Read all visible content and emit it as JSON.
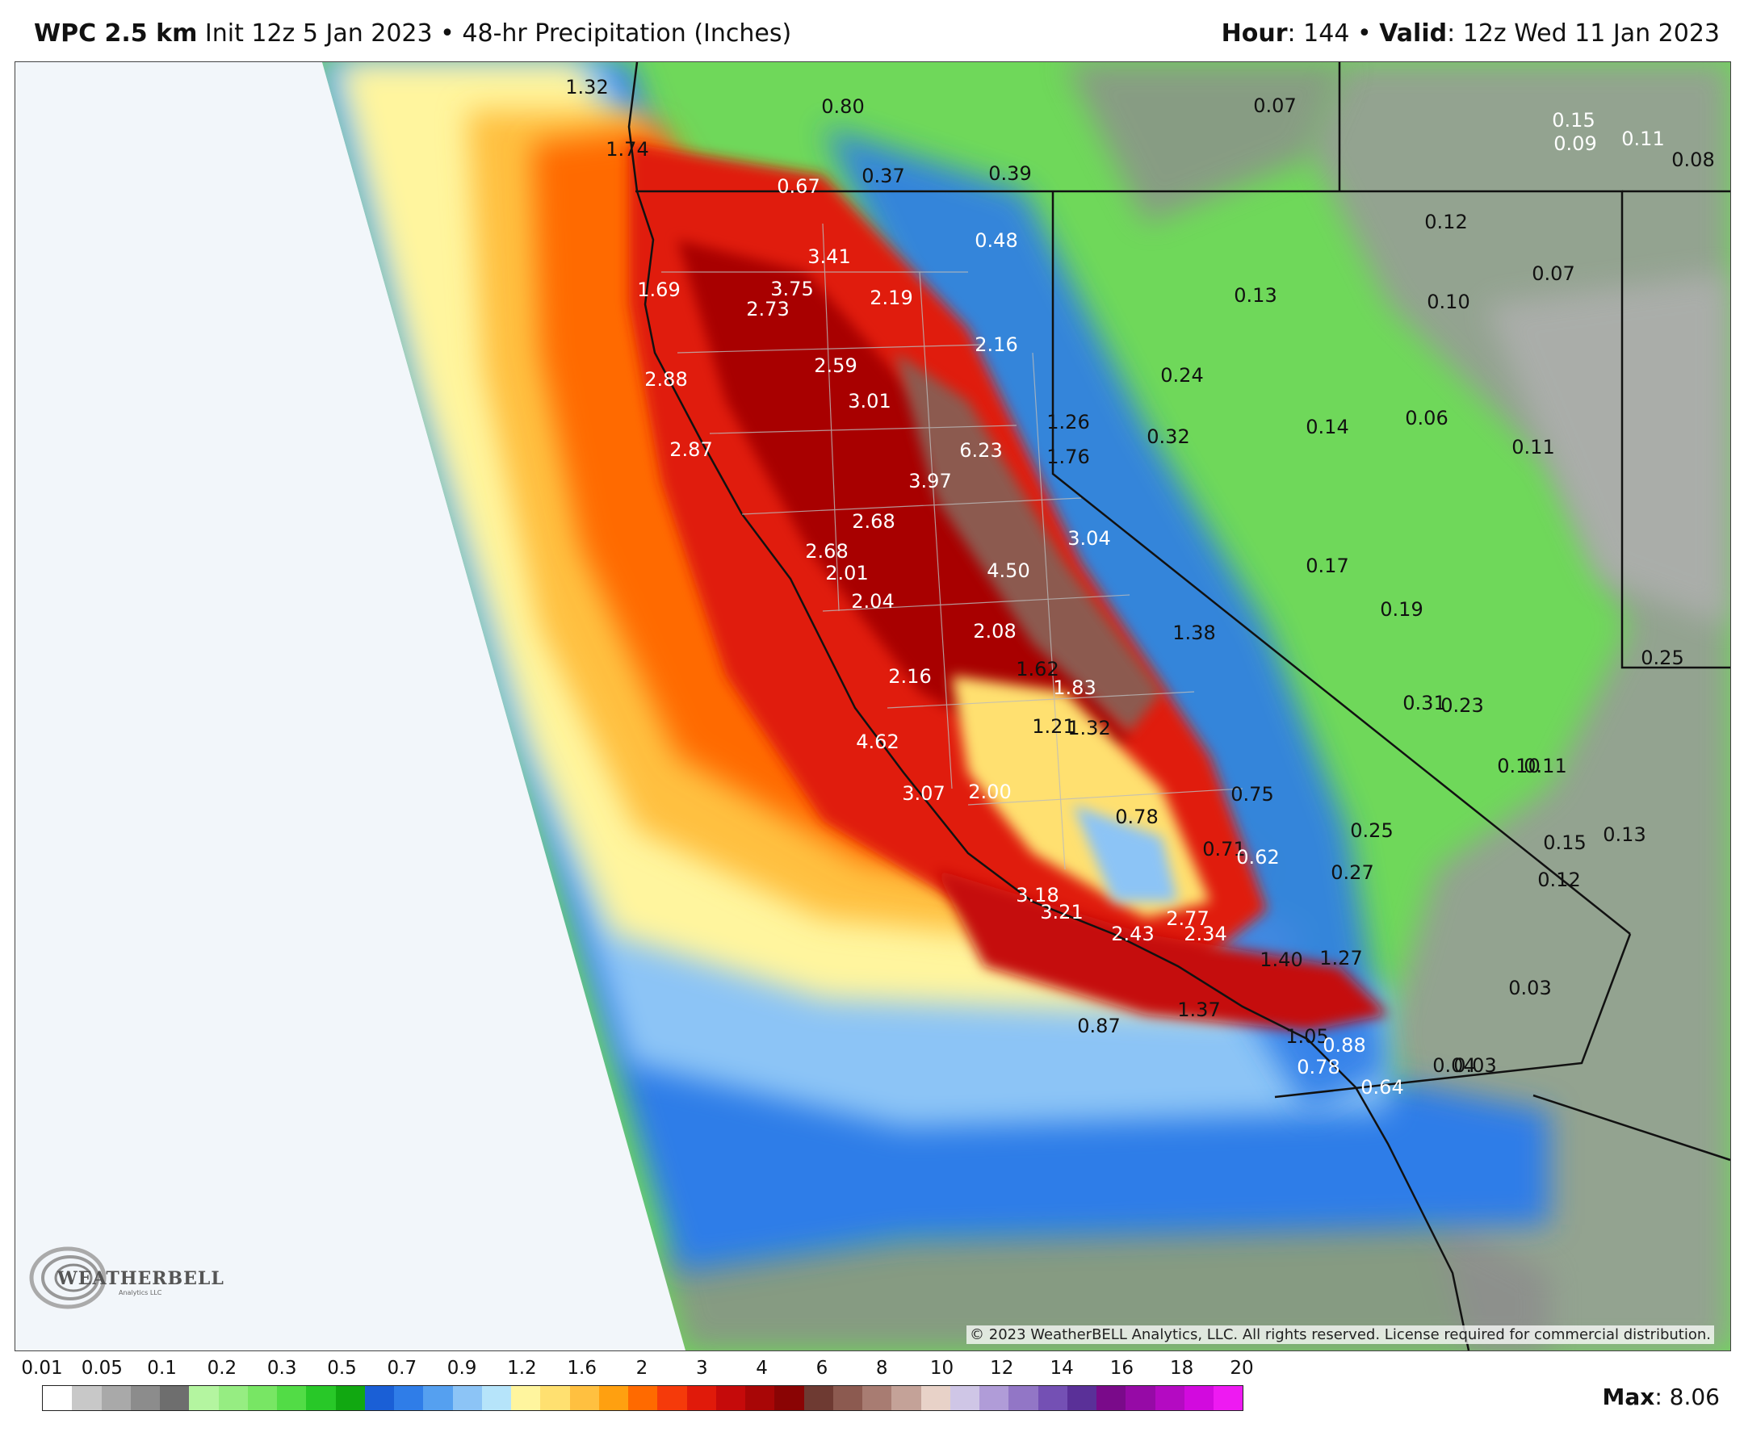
{
  "header": {
    "model": "WPC 2.5 km",
    "init": "Init 12z 5 Jan 2023",
    "sep": "•",
    "product": "48-hr Precipitation (Inches)",
    "hour_label": "Hour",
    "hour_value": ": 144",
    "valid_label": "Valid",
    "valid_value": ": 12z Wed 11 Jan 2023"
  },
  "legend": {
    "tick_labels": [
      "0.01",
      "0.05",
      "0.1",
      "0.2",
      "0.3",
      "0.5",
      "0.7",
      "0.9",
      "1.2",
      "1.6",
      "2",
      "3",
      "4",
      "6",
      "8",
      "10",
      "12",
      "14",
      "16",
      "18",
      "20"
    ],
    "colors": [
      "#ffffff",
      "#c8c8c8",
      "#a9a9a9",
      "#8c8c8c",
      "#6e6e6e",
      "#b4f5a0",
      "#96ed82",
      "#78e664",
      "#52dc46",
      "#28c828",
      "#11a811",
      "#1a5fd6",
      "#2f7de8",
      "#55a0f0",
      "#8cc4f6",
      "#b6e4fa",
      "#fff59e",
      "#ffe070",
      "#ffc040",
      "#ffa010",
      "#ff6a00",
      "#f53a0a",
      "#e01a0a",
      "#c50a0a",
      "#a80606",
      "#8a0404",
      "#6e3a32",
      "#8c5a50",
      "#a87c72",
      "#c4a298",
      "#e8d2c8",
      "#cfc6e6",
      "#b09cd8",
      "#9276c6",
      "#7450b4",
      "#5a3098",
      "#7a0a8a",
      "#960aa6",
      "#b40ac2",
      "#d20ade",
      "#ee1af2"
    ],
    "max_label": "Max",
    "max_value": ": 8.06"
  },
  "copyright": "© 2023 WeatherBELL Analytics, LLC. All rights reserved. License required for commercial distribution.",
  "logo": {
    "text": "WEATHERBELL",
    "sub": "Analytics LLC"
  },
  "values": [
    {
      "v": "1.32",
      "c": "k"
    },
    {
      "v": "1.74",
      "c": "k"
    },
    {
      "v": "0.80",
      "c": "k"
    },
    {
      "v": "0.67",
      "c": "w"
    },
    {
      "v": "0.37",
      "c": "k"
    },
    {
      "v": "0.39",
      "c": "k"
    },
    {
      "v": "0.07",
      "c": "k"
    },
    {
      "v": "0.15",
      "c": "w"
    },
    {
      "v": "0.09",
      "c": "w"
    },
    {
      "v": "0.11",
      "c": "w"
    },
    {
      "v": "0.08",
      "c": "k"
    },
    {
      "v": "0.48",
      "c": "w"
    },
    {
      "v": "3.41",
      "c": "w"
    },
    {
      "v": "3.75",
      "c": "w"
    },
    {
      "v": "2.73",
      "c": "w"
    },
    {
      "v": "2.19",
      "c": "w"
    },
    {
      "v": "1.69",
      "c": "w"
    },
    {
      "v": "2.59",
      "c": "w"
    },
    {
      "v": "2.16",
      "c": "w"
    },
    {
      "v": "0.12",
      "c": "k"
    },
    {
      "v": "0.07",
      "c": "k"
    },
    {
      "v": "0.13",
      "c": "k"
    },
    {
      "v": "0.10",
      "c": "k"
    },
    {
      "v": "2.88",
      "c": "w"
    },
    {
      "v": "3.01",
      "c": "w"
    },
    {
      "v": "0.24",
      "c": "k"
    },
    {
      "v": "1.26",
      "c": "k"
    },
    {
      "v": "0.32",
      "c": "k"
    },
    {
      "v": "0.14",
      "c": "k"
    },
    {
      "v": "0.06",
      "c": "k"
    },
    {
      "v": "2.87",
      "c": "w"
    },
    {
      "v": "6.23",
      "c": "w"
    },
    {
      "v": "1.76",
      "c": "k"
    },
    {
      "v": "0.11",
      "c": "k"
    },
    {
      "v": "3.97",
      "c": "w"
    },
    {
      "v": "2.68",
      "c": "w"
    },
    {
      "v": "3.04",
      "c": "w"
    },
    {
      "v": "2.68",
      "c": "w"
    },
    {
      "v": "2.01",
      "c": "w"
    },
    {
      "v": "4.50",
      "c": "w"
    },
    {
      "v": "0.17",
      "c": "k"
    },
    {
      "v": "2.04",
      "c": "w"
    },
    {
      "v": "0.19",
      "c": "k"
    },
    {
      "v": "2.08",
      "c": "w"
    },
    {
      "v": "1.38",
      "c": "k"
    },
    {
      "v": "0.25",
      "c": "k"
    },
    {
      "v": "1.62",
      "c": "k"
    },
    {
      "v": "2.16",
      "c": "w"
    },
    {
      "v": "1.83",
      "c": "w"
    },
    {
      "v": "0.31",
      "c": "k"
    },
    {
      "v": "0.23",
      "c": "k"
    },
    {
      "v": "1.21",
      "c": "k"
    },
    {
      "v": "1.32",
      "c": "k"
    },
    {
      "v": "4.62",
      "c": "w"
    },
    {
      "v": "0.10",
      "c": "k"
    },
    {
      "v": "0.11",
      "c": "k"
    },
    {
      "v": "3.07",
      "c": "w"
    },
    {
      "v": "2.00",
      "c": "w"
    },
    {
      "v": "0.75",
      "c": "k"
    },
    {
      "v": "0.78",
      "c": "k"
    },
    {
      "v": "0.25",
      "c": "k"
    },
    {
      "v": "0.13",
      "c": "k"
    },
    {
      "v": "0.15",
      "c": "k"
    },
    {
      "v": "0.71",
      "c": "k"
    },
    {
      "v": "0.62",
      "c": "w"
    },
    {
      "v": "0.27",
      "c": "k"
    },
    {
      "v": "0.12",
      "c": "k"
    },
    {
      "v": "3.18",
      "c": "w"
    },
    {
      "v": "3.21",
      "c": "w"
    },
    {
      "v": "2.77",
      "c": "w"
    },
    {
      "v": "2.43",
      "c": "w"
    },
    {
      "v": "2.34",
      "c": "w"
    },
    {
      "v": "1.40",
      "c": "k"
    },
    {
      "v": "1.27",
      "c": "k"
    },
    {
      "v": "0.03",
      "c": "k"
    },
    {
      "v": "1.37",
      "c": "k"
    },
    {
      "v": "0.87",
      "c": "k"
    },
    {
      "v": "1.05",
      "c": "k"
    },
    {
      "v": "0.88",
      "c": "w"
    },
    {
      "v": "0.04",
      "c": "k"
    },
    {
      "v": "0.03",
      "c": "k"
    },
    {
      "v": "0.78",
      "c": "w"
    },
    {
      "v": "0.64",
      "c": "w"
    }
  ]
}
